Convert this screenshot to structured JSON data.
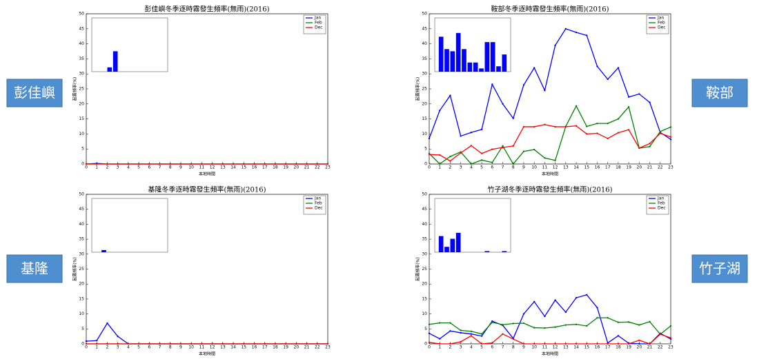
{
  "chart_data": [
    {
      "type": "line",
      "side_label": "彭佳嶼",
      "title": "彭佳嶼冬季逐時霧發生頻率(無雨)(2016)",
      "x_label": "本地時間",
      "y_label": "起霧頻率(%)",
      "x": [
        0,
        1,
        2,
        3,
        4,
        5,
        6,
        7,
        8,
        9,
        10,
        11,
        12,
        13,
        14,
        15,
        16,
        17,
        18,
        19,
        20,
        21,
        22,
        23
      ],
      "xlim": [
        0,
        23
      ],
      "xticks": [
        0,
        1,
        2,
        3,
        4,
        5,
        6,
        7,
        8,
        9,
        10,
        11,
        12,
        13,
        14,
        15,
        16,
        17,
        18,
        19,
        20,
        21,
        22,
        23
      ],
      "ylim": [
        0,
        50
      ],
      "yticks": [
        0,
        5,
        10,
        15,
        20,
        25,
        30,
        35,
        40,
        45,
        50
      ],
      "legend": "upper right",
      "series": [
        {
          "name": "Jan",
          "color": "#0000ff",
          "values": [
            0,
            0.2,
            0,
            0,
            0,
            0,
            0,
            0,
            0,
            0,
            0,
            0,
            0,
            0,
            0,
            0,
            0,
            0,
            0,
            0,
            0,
            0,
            0,
            0
          ]
        },
        {
          "name": "Feb",
          "color": "#008000",
          "values": [
            0,
            0,
            0,
            0,
            0,
            0,
            0,
            0,
            0,
            0,
            0,
            0,
            0,
            0,
            0,
            0,
            0,
            0,
            0,
            0,
            0,
            0,
            0,
            0
          ]
        },
        {
          "name": "Dec",
          "color": "#ff0000",
          "values": [
            0,
            0,
            0,
            0,
            0,
            0,
            0,
            0,
            0,
            0,
            0,
            0,
            0,
            0,
            0,
            0,
            0,
            0,
            0,
            0,
            0,
            0,
            0,
            0
          ]
        }
      ],
      "inset": {
        "type": "bar",
        "color": "#0000ff",
        "ylim": [
          0,
          1
        ],
        "values": [
          0,
          0,
          0.08,
          0.38,
          0,
          0,
          0,
          0,
          0,
          0,
          0,
          0
        ]
      }
    },
    {
      "type": "line",
      "side_label": "鞍部",
      "title": "鞍部冬季逐時霧發生頻率(無雨)(2016)",
      "x_label": "本地時間",
      "y_label": "起霧頻率(%)",
      "x": [
        0,
        1,
        2,
        3,
        4,
        5,
        6,
        7,
        8,
        9,
        10,
        11,
        12,
        13,
        14,
        15,
        16,
        17,
        18,
        19,
        20,
        21,
        22,
        23
      ],
      "xlim": [
        0,
        23
      ],
      "xticks": [
        0,
        1,
        2,
        3,
        4,
        5,
        6,
        7,
        8,
        9,
        10,
        11,
        12,
        13,
        14,
        15,
        16,
        17,
        18,
        19,
        20,
        21,
        22,
        23
      ],
      "ylim": [
        0,
        50
      ],
      "yticks": [
        0,
        5,
        10,
        15,
        20,
        25,
        30,
        35,
        40,
        45,
        50
      ],
      "legend": "upper right",
      "series": [
        {
          "name": "Jan",
          "color": "#0000ff",
          "values": [
            8.5,
            17.8,
            22.8,
            9.3,
            10.5,
            11.5,
            26.5,
            20,
            15.2,
            26.3,
            32,
            24.5,
            39.5,
            45,
            43.8,
            42.8,
            32.5,
            28.2,
            32,
            22.3,
            23.3,
            20.5,
            10.5,
            8.2
          ]
        },
        {
          "name": "Feb",
          "color": "#008000",
          "values": [
            3.5,
            0,
            2.5,
            4,
            0,
            1.3,
            0.5,
            6,
            0,
            4.2,
            4.8,
            2,
            1.2,
            12.5,
            19.3,
            12.5,
            13.5,
            13.5,
            15,
            19,
            5.3,
            5.8,
            10.8,
            12.3
          ]
        },
        {
          "name": "Dec",
          "color": "#ff0000",
          "values": [
            3.2,
            3,
            1,
            3.7,
            6.1,
            3.5,
            4.9,
            5.5,
            6,
            12.4,
            12.4,
            13.1,
            12.4,
            12.4,
            12.7,
            10,
            10.2,
            8.5,
            10.4,
            11.4,
            5.3,
            6.8,
            10.2,
            9
          ]
        }
      ],
      "inset": {
        "type": "bar",
        "color": "#0000ff",
        "ylim": [
          0,
          1
        ],
        "values": [
          0.65,
          0.42,
          0.38,
          0.72,
          0.42,
          0.17,
          0.17,
          0.06,
          0.55,
          0.55,
          0.1,
          0.32
        ]
      }
    },
    {
      "type": "line",
      "side_label": "基隆",
      "title": "基隆冬季逐時霧發生頻率(無雨)(2016)",
      "x_label": "本地時間",
      "y_label": "起霧頻率(%)",
      "x": [
        0,
        1,
        2,
        3,
        4,
        5,
        6,
        7,
        8,
        9,
        10,
        11,
        12,
        13,
        14,
        15,
        16,
        17,
        18,
        19,
        20,
        21,
        22,
        23
      ],
      "xlim": [
        0,
        23
      ],
      "xticks": [
        0,
        1,
        2,
        3,
        4,
        5,
        6,
        7,
        8,
        9,
        10,
        11,
        12,
        13,
        14,
        15,
        16,
        17,
        18,
        19,
        20,
        21,
        22,
        23
      ],
      "ylim": [
        0,
        50
      ],
      "yticks": [
        0,
        5,
        10,
        15,
        20,
        25,
        30,
        35,
        40,
        45,
        50
      ],
      "legend": "upper right",
      "series": [
        {
          "name": "Jan",
          "color": "#0000ff",
          "values": [
            0.9,
            1.1,
            6.9,
            2.5,
            0,
            0,
            0,
            0,
            0,
            0,
            0,
            0,
            0,
            0,
            0,
            0,
            0,
            0,
            0,
            0,
            0,
            0,
            0,
            0
          ]
        },
        {
          "name": "Feb",
          "color": "#008000",
          "values": [
            0,
            0,
            0,
            0,
            0,
            0,
            0,
            0,
            0,
            0,
            0,
            0,
            0,
            0,
            0,
            0,
            0,
            0,
            0,
            0,
            0,
            0,
            0,
            0
          ]
        },
        {
          "name": "Dec",
          "color": "#ff0000",
          "values": [
            0,
            0,
            0,
            0,
            0,
            0,
            0,
            0,
            0,
            0,
            0,
            0,
            0,
            0,
            0,
            0,
            0,
            0,
            0,
            0,
            0,
            0,
            0,
            0
          ]
        }
      ],
      "inset": {
        "type": "bar",
        "color": "#0000ff",
        "ylim": [
          0,
          1
        ],
        "values": [
          0,
          0.04,
          0,
          0,
          0,
          0,
          0,
          0,
          0,
          0,
          0,
          0
        ]
      }
    },
    {
      "type": "line",
      "side_label": "竹子湖",
      "title": "竹子湖冬季逐時霧發生頻率(無雨)(2016)",
      "x_label": "本地時間",
      "y_label": "起霧頻率(%)",
      "x": [
        0,
        1,
        2,
        3,
        4,
        5,
        6,
        7,
        8,
        9,
        10,
        11,
        12,
        13,
        14,
        15,
        16,
        17,
        18,
        19,
        20,
        21,
        22,
        23
      ],
      "xlim": [
        0,
        23
      ],
      "xticks": [
        0,
        1,
        2,
        3,
        4,
        5,
        6,
        7,
        8,
        9,
        10,
        11,
        12,
        13,
        14,
        15,
        16,
        17,
        18,
        19,
        20,
        21,
        22,
        23
      ],
      "ylim": [
        0,
        50
      ],
      "yticks": [
        0,
        5,
        10,
        15,
        20,
        25,
        30,
        35,
        40,
        45,
        50
      ],
      "legend": "upper right",
      "series": [
        {
          "name": "Jan",
          "color": "#0000ff",
          "values": [
            3.5,
            1.7,
            4.3,
            3.7,
            3.3,
            2.6,
            7.6,
            6.2,
            1.8,
            10,
            14.1,
            9.2,
            14.6,
            10.6,
            15.4,
            16.4,
            12.1,
            0.3,
            2.7,
            0.2,
            0,
            0,
            3.5,
            1.6
          ]
        },
        {
          "name": "Feb",
          "color": "#008000",
          "values": [
            6.5,
            7,
            7,
            4.5,
            4.2,
            3.3,
            7.2,
            6.4,
            6.8,
            6.9,
            5.4,
            5.3,
            5.6,
            6.3,
            6.5,
            6,
            8.7,
            8.7,
            7.2,
            7.3,
            6.3,
            7.4,
            3.2,
            6
          ]
        },
        {
          "name": "Dec",
          "color": "#ff0000",
          "values": [
            0.5,
            0,
            0,
            0.7,
            2.7,
            0,
            0.3,
            3.3,
            1.6,
            0,
            0,
            0,
            0,
            0,
            0,
            0,
            0,
            0,
            0,
            0,
            1.2,
            0,
            3.2,
            2
          ]
        }
      ],
      "inset": {
        "type": "bar",
        "color": "#0000ff",
        "ylim": [
          0,
          1
        ],
        "values": [
          0.3,
          0.1,
          0.25,
          0.36,
          0,
          0,
          0,
          0,
          0.02,
          0,
          0,
          0.02
        ]
      }
    }
  ]
}
